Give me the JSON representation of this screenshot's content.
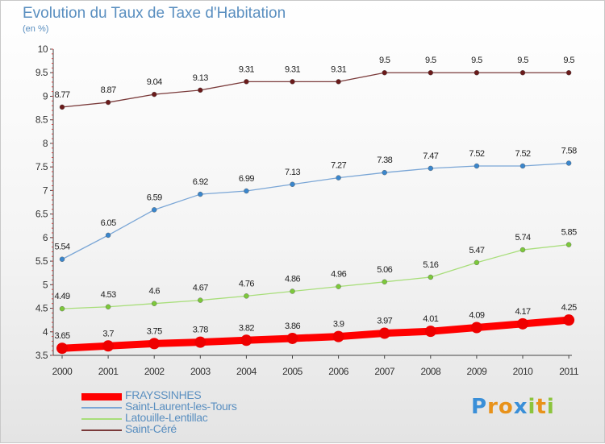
{
  "title": "Evolution du Taux de Taxe d'Habitation",
  "subtitle": "(en %)",
  "logo": {
    "letters": [
      {
        "char": "P",
        "color": "#3a8fd8"
      },
      {
        "char": "r",
        "color": "#e8921a"
      },
      {
        "char": "o",
        "color": "#e8921a"
      },
      {
        "char": "x",
        "color": "#3a8fd8"
      },
      {
        "char": "i",
        "color": "#8cc43c"
      },
      {
        "char": "t",
        "color": "#e8921a"
      },
      {
        "char": "i",
        "color": "#8cc43c"
      }
    ]
  },
  "chart_data": {
    "type": "line",
    "x": [
      "2000",
      "2001",
      "2002",
      "2003",
      "2004",
      "2005",
      "2006",
      "2007",
      "2008",
      "2009",
      "2010",
      "2011"
    ],
    "ylim": [
      3.5,
      10
    ],
    "yticks": [
      "3.5",
      "4",
      "4.5",
      "5",
      "5.5",
      "6",
      "6.5",
      "7",
      "7.5",
      "8",
      "8.5",
      "9",
      "9.5",
      "10"
    ],
    "grid": false,
    "legend_placement": "bottom-left",
    "series": [
      {
        "name": "FRAYSSINHES",
        "color": "#ff0000",
        "marker": "#ee0000",
        "values": [
          3.65,
          3.7,
          3.75,
          3.78,
          3.82,
          3.86,
          3.9,
          3.97,
          4.01,
          4.09,
          4.17,
          4.25
        ],
        "labels": [
          "3.65",
          "3.7",
          "3.75",
          "3.78",
          "3.82",
          "3.86",
          "3.9",
          "3.97",
          "4.01",
          "4.09",
          "4.17",
          "4.25"
        ]
      },
      {
        "name": "Saint-Laurent-les-Tours",
        "color": "#7aa6d6",
        "marker": "#3a86cc",
        "values": [
          5.54,
          6.05,
          6.59,
          6.92,
          6.99,
          7.13,
          7.27,
          7.38,
          7.47,
          7.52,
          7.52,
          7.58
        ],
        "labels": [
          "5.54",
          "6.05",
          "6.59",
          "6.92",
          "6.99",
          "7.13",
          "7.27",
          "7.38",
          "7.47",
          "7.52",
          "7.52",
          "7.58"
        ]
      },
      {
        "name": "Latouille-Lentillac",
        "color": "#a8de7a",
        "marker": "#7cc83a",
        "values": [
          4.49,
          4.53,
          4.6,
          4.67,
          4.76,
          4.86,
          4.96,
          5.06,
          5.16,
          5.47,
          5.74,
          5.85
        ],
        "labels": [
          "4.49",
          "4.53",
          "4.6",
          "4.67",
          "4.76",
          "4.86",
          "4.96",
          "5.06",
          "5.16",
          "5.47",
          "5.74",
          "5.85"
        ]
      },
      {
        "name": "Saint-Céré",
        "color": "#7a3a3a",
        "marker": "#6a1a1a",
        "values": [
          8.77,
          8.87,
          9.04,
          9.13,
          9.31,
          9.31,
          9.31,
          9.5,
          9.5,
          9.5,
          9.5,
          9.5
        ],
        "labels": [
          "8.77",
          "8.87",
          "9.04",
          "9.13",
          "9.31",
          "9.31",
          "9.31",
          "9.5",
          "9.5",
          "9.5",
          "9.5",
          "9.5"
        ]
      }
    ]
  }
}
